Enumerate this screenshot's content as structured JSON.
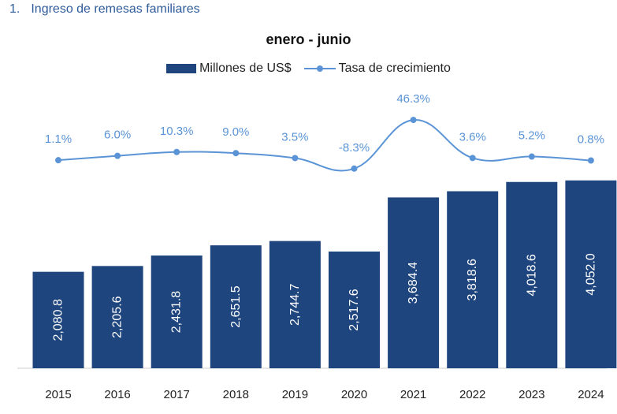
{
  "heading": {
    "number": "1.",
    "text": "Ingreso de remesas familiares"
  },
  "colors": {
    "bar": "#1f457e",
    "line": "#5b94d6",
    "rate_label": "#5b94d6",
    "heading": "#2f5b9a"
  },
  "chart_data": {
    "type": "bar",
    "title": "enero - junio",
    "categories": [
      "2015",
      "2016",
      "2017",
      "2018",
      "2019",
      "2020",
      "2021",
      "2022",
      "2023",
      "2024"
    ],
    "series": [
      {
        "name": "Millones de US$",
        "type": "bar",
        "values": [
          2080.8,
          2205.6,
          2431.8,
          2651.5,
          2744.7,
          2517.6,
          3684.4,
          3818.6,
          4018.6,
          4052.0
        ],
        "labels": [
          "2,080.8",
          "2,205.6",
          "2,431.8",
          "2,651.5",
          "2,744.7",
          "2,517.6",
          "3,684.4",
          "3,818.6",
          "4,018.6",
          "4,052.0"
        ]
      },
      {
        "name": "Tasa de crecimiento",
        "type": "line",
        "values": [
          1.1,
          6.0,
          10.3,
          9.0,
          3.5,
          -8.3,
          46.3,
          3.6,
          5.2,
          0.8
        ],
        "labels": [
          "1.1%",
          "6.0%",
          "10.3%",
          "9.0%",
          "3.5%",
          "-8.3%",
          "46.3%",
          "3.6%",
          "5.2%",
          "0.8%"
        ]
      }
    ],
    "legend": "top",
    "grid": false
  }
}
